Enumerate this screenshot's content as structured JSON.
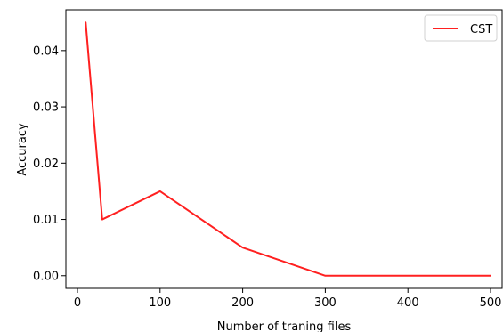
{
  "chart_data": {
    "type": "line",
    "title": "",
    "xlabel": "Number of traning files",
    "ylabel": "Accuracy",
    "xlim": [
      -14,
      514
    ],
    "ylim": [
      -0.00225,
      0.04725
    ],
    "xticks": [
      0,
      100,
      200,
      300,
      400,
      500
    ],
    "xtick_labels": [
      "0",
      "100",
      "200",
      "300",
      "400",
      "500"
    ],
    "yticks": [
      0.0,
      0.01,
      0.02,
      0.03,
      0.04
    ],
    "ytick_labels": [
      "0.00",
      "0.01",
      "0.02",
      "0.03",
      "0.04"
    ],
    "grid": false,
    "legend_position": "top-right",
    "series": [
      {
        "name": "CST",
        "color": "#ff2020",
        "x": [
          10,
          30,
          100,
          200,
          300,
          400,
          500
        ],
        "y": [
          0.045,
          0.01,
          0.015,
          0.005,
          0.0,
          0.0,
          0.0
        ]
      }
    ]
  }
}
